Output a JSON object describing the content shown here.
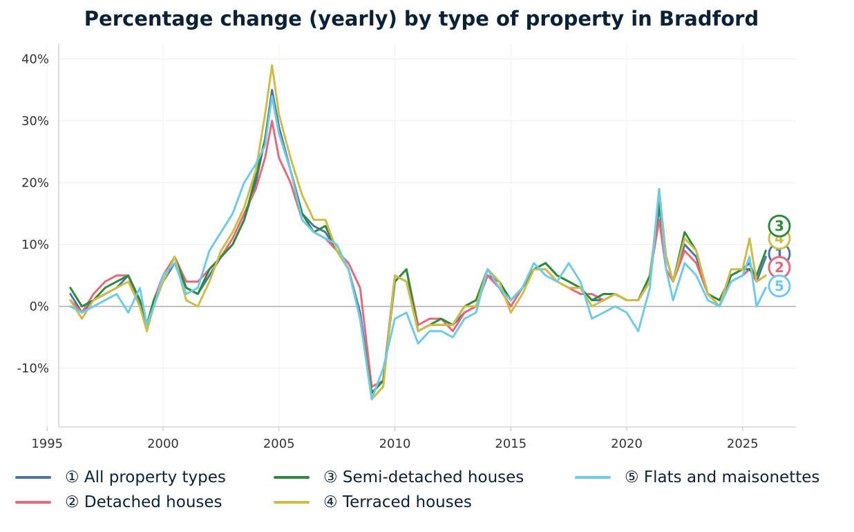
{
  "chart_data": {
    "type": "line",
    "title": "Percentage change (yearly) by type of property in Bradford",
    "xlabel": "",
    "ylabel": "",
    "xlim": [
      1995.5,
      2027.3
    ],
    "ylim": [
      -19.5,
      42.5
    ],
    "x_ticks": [
      1995,
      2000,
      2005,
      2010,
      2015,
      2020,
      2025
    ],
    "y_ticks": [
      -10,
      0,
      10,
      20,
      30,
      40
    ],
    "y_tick_labels": [
      "-10%",
      "0%",
      "10%",
      "20%",
      "30%",
      "40%"
    ],
    "grid": true,
    "legend_position": "bottom",
    "series": [
      {
        "name": "① All property types",
        "marker": "1",
        "color": "#4a76a8",
        "x": [
          1996.0,
          1996.5,
          1997.0,
          1997.5,
          1998.0,
          1998.5,
          1999.0,
          1999.3,
          1999.6,
          2000.0,
          2000.5,
          2001.0,
          2001.5,
          2002.0,
          2002.5,
          2003.0,
          2003.5,
          2004.0,
          2004.4,
          2004.7,
          2005.0,
          2005.5,
          2006.0,
          2006.5,
          2007.0,
          2007.5,
          2008.0,
          2008.5,
          2009.0,
          2009.5,
          2010.0,
          2010.5,
          2011.0,
          2011.5,
          2012.0,
          2012.5,
          2013.0,
          2013.5,
          2014.0,
          2014.5,
          2015.0,
          2015.5,
          2016.0,
          2016.5,
          2017.0,
          2017.5,
          2018.0,
          2018.5,
          2019.0,
          2019.5,
          2020.0,
          2020.5,
          2021.0,
          2021.4,
          2021.7,
          2022.0,
          2022.5,
          2023.0,
          2023.5,
          2024.0,
          2024.5,
          2025.0,
          2025.3,
          2025.6,
          2026.0
        ],
        "values": [
          2,
          -1,
          1,
          2,
          3,
          5,
          1,
          -3,
          1,
          4,
          7,
          3,
          2,
          5,
          8,
          10,
          14,
          20,
          27,
          35,
          29,
          22,
          15,
          13,
          12,
          9,
          6,
          -1,
          -14,
          -12,
          5,
          4,
          -4,
          -3,
          -3,
          -3,
          -1,
          0,
          5,
          4,
          1,
          3,
          6,
          7,
          5,
          4,
          3,
          1,
          1,
          2,
          1,
          1,
          4,
          16,
          8,
          4,
          10,
          8,
          2,
          0,
          5,
          6,
          7,
          4,
          8
        ]
      },
      {
        "name": "② Detached houses",
        "marker": "2",
        "color": "#e8687a",
        "x": [
          1996.0,
          1996.5,
          1997.0,
          1997.5,
          1998.0,
          1998.5,
          1999.0,
          1999.3,
          1999.6,
          2000.0,
          2000.5,
          2001.0,
          2001.5,
          2002.0,
          2002.5,
          2003.0,
          2003.5,
          2004.0,
          2004.4,
          2004.7,
          2005.0,
          2005.5,
          2006.0,
          2006.5,
          2007.0,
          2007.5,
          2008.0,
          2008.5,
          2009.0,
          2009.5,
          2010.0,
          2010.5,
          2011.0,
          2011.5,
          2012.0,
          2012.5,
          2013.0,
          2013.5,
          2014.0,
          2014.5,
          2015.0,
          2015.5,
          2016.0,
          2016.5,
          2017.0,
          2017.5,
          2018.0,
          2018.5,
          2019.0,
          2019.5,
          2020.0,
          2020.5,
          2021.0,
          2021.4,
          2021.7,
          2022.0,
          2022.5,
          2023.0,
          2023.5,
          2024.0,
          2024.5,
          2025.0,
          2025.3,
          2025.6,
          2026.0
        ],
        "values": [
          1,
          -1,
          2,
          4,
          5,
          5,
          0,
          -3,
          1,
          5,
          8,
          4,
          4,
          6,
          8,
          11,
          15,
          19,
          24,
          30,
          24,
          20,
          14,
          12,
          11,
          9,
          7,
          3,
          -13,
          -12,
          4,
          6,
          -3,
          -2,
          -2,
          -4,
          -1,
          0,
          5,
          3,
          0,
          3,
          6,
          6,
          4,
          3,
          2,
          2,
          1,
          2,
          1,
          1,
          5,
          14,
          6,
          4,
          9,
          7,
          2,
          0,
          4,
          5,
          6,
          4,
          5
        ]
      },
      {
        "name": "③ Semi-detached houses",
        "marker": "3",
        "color": "#2e8b3a",
        "x": [
          1996.0,
          1996.5,
          1997.0,
          1997.5,
          1998.0,
          1998.5,
          1999.0,
          1999.3,
          1999.6,
          2000.0,
          2000.5,
          2001.0,
          2001.5,
          2002.0,
          2002.5,
          2003.0,
          2003.5,
          2004.0,
          2004.4,
          2004.7,
          2005.0,
          2005.5,
          2006.0,
          2006.5,
          2007.0,
          2007.5,
          2008.0,
          2008.5,
          2009.0,
          2009.5,
          2010.0,
          2010.5,
          2011.0,
          2011.5,
          2012.0,
          2012.5,
          2013.0,
          2013.5,
          2014.0,
          2014.5,
          2015.0,
          2015.5,
          2016.0,
          2016.5,
          2017.0,
          2017.5,
          2018.0,
          2018.5,
          2019.0,
          2019.5,
          2020.0,
          2020.5,
          2021.0,
          2021.4,
          2021.7,
          2022.0,
          2022.5,
          2023.0,
          2023.5,
          2024.0,
          2024.5,
          2025.0,
          2025.3,
          2025.6,
          2026.0
        ],
        "values": [
          3,
          0,
          1,
          3,
          4,
          5,
          1,
          -3,
          1,
          4,
          8,
          3,
          2,
          6,
          8,
          10,
          14,
          21,
          27,
          34,
          28,
          22,
          15,
          12,
          13,
          9,
          6,
          -2,
          -14,
          -12,
          4,
          6,
          -4,
          -3,
          -2,
          -3,
          0,
          1,
          6,
          4,
          1,
          3,
          6,
          7,
          5,
          4,
          3,
          1,
          2,
          2,
          1,
          1,
          5,
          17,
          8,
          4,
          12,
          9,
          2,
          1,
          5,
          6,
          6,
          5,
          9
        ]
      },
      {
        "name": "④ Terraced houses",
        "marker": "4",
        "color": "#cfbc45",
        "x": [
          1996.0,
          1996.5,
          1997.0,
          1997.5,
          1998.0,
          1998.5,
          1999.0,
          1999.3,
          1999.6,
          2000.0,
          2000.5,
          2001.0,
          2001.5,
          2002.0,
          2002.5,
          2003.0,
          2003.5,
          2004.0,
          2004.4,
          2004.7,
          2005.0,
          2005.5,
          2006.0,
          2006.5,
          2007.0,
          2007.5,
          2008.0,
          2008.5,
          2009.0,
          2009.5,
          2010.0,
          2010.5,
          2011.0,
          2011.5,
          2012.0,
          2012.5,
          2013.0,
          2013.5,
          2014.0,
          2014.5,
          2015.0,
          2015.5,
          2016.0,
          2016.5,
          2017.0,
          2017.5,
          2018.0,
          2018.5,
          2019.0,
          2019.5,
          2020.0,
          2020.5,
          2021.0,
          2021.4,
          2021.7,
          2022.0,
          2022.5,
          2023.0,
          2023.5,
          2024.0,
          2024.5,
          2025.0,
          2025.3,
          2025.6,
          2026.0
        ],
        "values": [
          1,
          -2,
          1,
          2,
          3,
          4,
          0,
          -4,
          0,
          4,
          8,
          1,
          0,
          4,
          9,
          12,
          16,
          22,
          31,
          39,
          31,
          24,
          18,
          14,
          14,
          9,
          6,
          -2,
          -15,
          -13,
          5,
          4,
          -4,
          -3,
          -3,
          -3,
          0,
          0,
          6,
          4,
          -1,
          2,
          6,
          6,
          4,
          3,
          3,
          0,
          1,
          2,
          1,
          1,
          4,
          19,
          8,
          4,
          11,
          9,
          2,
          0,
          6,
          6,
          11,
          4,
          5
        ]
      },
      {
        "name": "⑤ Flats and maisonettes",
        "marker": "5",
        "color": "#6ccbe8",
        "x": [
          1996.0,
          1996.5,
          1997.0,
          1997.5,
          1998.0,
          1998.5,
          1999.0,
          1999.3,
          1999.6,
          2000.0,
          2000.5,
          2001.0,
          2001.5,
          2002.0,
          2002.5,
          2003.0,
          2003.5,
          2004.0,
          2004.4,
          2004.7,
          2005.0,
          2005.5,
          2006.0,
          2006.5,
          2007.0,
          2007.5,
          2008.0,
          2008.5,
          2009.0,
          2009.5,
          2010.0,
          2010.5,
          2011.0,
          2011.5,
          2012.0,
          2012.5,
          2013.0,
          2013.5,
          2014.0,
          2014.5,
          2015.0,
          2015.5,
          2016.0,
          2016.5,
          2017.0,
          2017.5,
          2018.0,
          2018.5,
          2019.0,
          2019.5,
          2020.0,
          2020.5,
          2021.0,
          2021.4,
          2021.7,
          2022.0,
          2022.5,
          2023.0,
          2023.5,
          2024.0,
          2024.5,
          2025.0,
          2025.3,
          2025.6,
          2026.0
        ],
        "values": [
          0,
          -1,
          0,
          1,
          2,
          -1,
          3,
          -3,
          0,
          5,
          7,
          2,
          3,
          9,
          12,
          15,
          20,
          23,
          26,
          34,
          28,
          22,
          14,
          12,
          11,
          10,
          6,
          -2,
          -15,
          -10,
          -2,
          -1,
          -6,
          -4,
          -4,
          -5,
          -2,
          -1,
          6,
          3,
          1,
          3,
          7,
          5,
          4,
          7,
          4,
          -2,
          -1,
          0,
          -1,
          -4,
          3,
          19,
          6,
          1,
          7,
          5,
          1,
          0,
          4,
          5,
          8,
          0,
          3
        ]
      }
    ]
  }
}
